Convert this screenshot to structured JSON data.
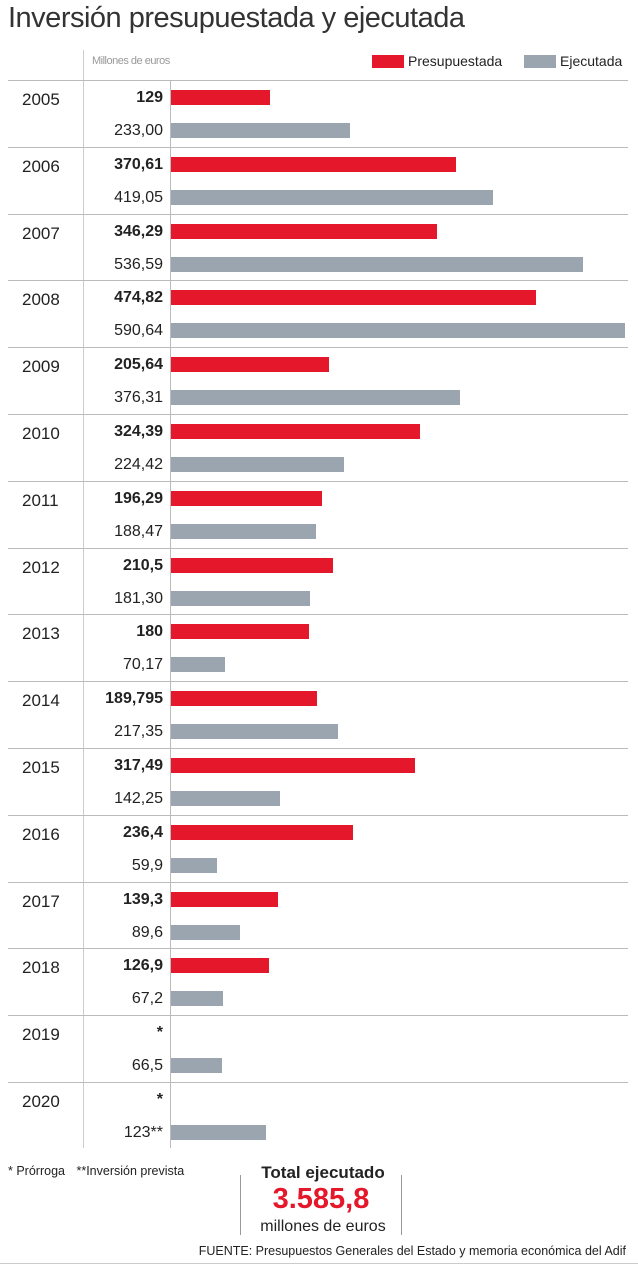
{
  "chart_data": {
    "type": "bar",
    "orientation": "horizontal",
    "title": "Inversión presupuestada y ejecutada",
    "unit_label": "Millones de euros",
    "legend": [
      {
        "name": "Presupuestada",
        "color": "#e4172b"
      },
      {
        "name": "Ejecutada",
        "color": "#9aa5b0"
      }
    ],
    "legend_position": "top-right",
    "xlim": [
      0,
      590.64
    ],
    "categories": [
      "2005",
      "2006",
      "2007",
      "2008",
      "2009",
      "2010",
      "2011",
      "2012",
      "2013",
      "2014",
      "2015",
      "2016",
      "2017",
      "2018",
      "2019",
      "2020"
    ],
    "series": [
      {
        "name": "Presupuestada",
        "values": [
          129,
          370.61,
          346.29,
          474.82,
          205.64,
          324.39,
          196.29,
          210.5,
          180,
          189.795,
          317.49,
          236.4,
          139.3,
          126.9,
          null,
          null
        ],
        "labels": [
          "129",
          "370,61",
          "346,29",
          "474,82",
          "205,64",
          "324,39",
          "196,29",
          "210,5",
          "180",
          "189,795",
          "317,49",
          "236,4",
          "139,3",
          "126,9",
          "*",
          "*"
        ]
      },
      {
        "name": "Ejecutada",
        "values": [
          233.0,
          419.05,
          536.59,
          590.64,
          376.31,
          224.42,
          188.47,
          181.3,
          70.17,
          217.35,
          142.25,
          59.9,
          89.6,
          67.2,
          66.5,
          123
        ],
        "labels": [
          "233,00",
          "419,05",
          "536,59",
          "590,64",
          "376,31",
          "224,42",
          "188,47",
          "181,30",
          "70,17",
          "217,35",
          "142,25",
          "59,9",
          "89,6",
          "67,2",
          "66,5",
          "123**"
        ]
      }
    ]
  },
  "notes": {
    "prorroga": "* Prórroga",
    "prevista": "**Inversión prevista"
  },
  "total": {
    "label": "Total ejecutado",
    "value": "3.585,8",
    "unit": "millones de euros"
  },
  "source": "FUENTE: Presupuestos Generales del Estado y memoria económica del Adif"
}
